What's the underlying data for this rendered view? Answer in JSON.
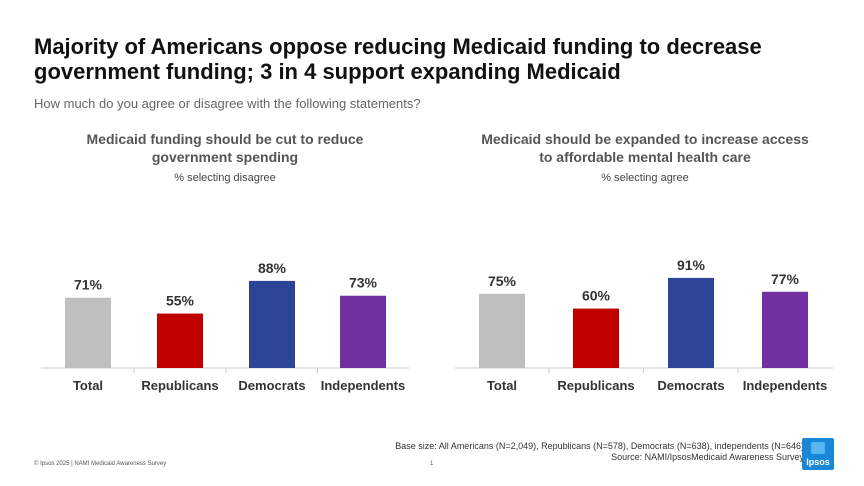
{
  "header": {
    "title": "Majority of Americans oppose reducing Medicaid funding to decrease government funding; 3 in 4 support expanding Medicaid",
    "subtitle": "How much do you agree or disagree with the following statements?"
  },
  "chart_data": [
    {
      "type": "bar",
      "title": "Medicaid funding should be cut to reduce government spending",
      "subtitle": "% selecting disagree",
      "categories": [
        "Total",
        "Republicans",
        "Democrats",
        "Independents"
      ],
      "values": [
        71,
        55,
        88,
        73
      ],
      "value_labels": [
        "71%",
        "55%",
        "88%",
        "73%"
      ],
      "colors": [
        "#bfbfbf",
        "#c00000",
        "#2e4597",
        "#7030a0"
      ],
      "ylim": [
        0,
        100
      ],
      "grid": false
    },
    {
      "type": "bar",
      "title": "Medicaid should be expanded to increase access to affordable mental health care",
      "subtitle": "% selecting agree",
      "categories": [
        "Total",
        "Republicans",
        "Democrats",
        "Independents"
      ],
      "values": [
        75,
        60,
        91,
        77
      ],
      "value_labels": [
        "75%",
        "60%",
        "91%",
        "77%"
      ],
      "colors": [
        "#bfbfbf",
        "#c00000",
        "#2e4597",
        "#7030a0"
      ],
      "ylim": [
        0,
        100
      ],
      "grid": false
    }
  ],
  "footer": {
    "base_size": "Base size: All Americans (N=2,049), Republicans (N=578), Democrats (N=638), independents (N=646)",
    "source": "Source: NAMI/IpsosMedicaid Awareness Survey",
    "copyright": "© Ipsos 2025 | NAMI Medicaid Awareness Survey",
    "page_number": "1",
    "logo_text": "Ipsos"
  }
}
